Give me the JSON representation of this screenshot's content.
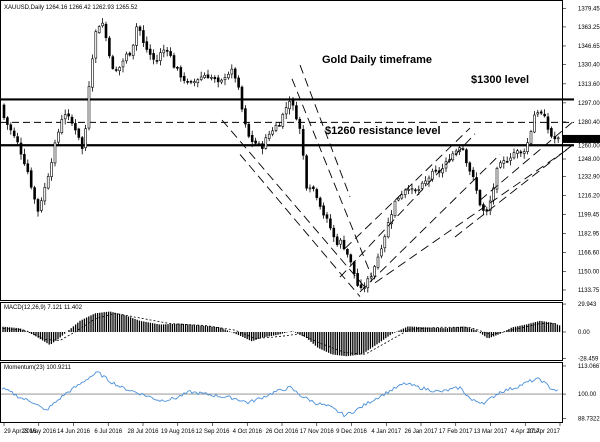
{
  "chart_data": {
    "type": "candlestick",
    "title": "XAUUSD,Daily  1264.16 1266.42 1262.93 1265.52",
    "annotations": {
      "timeframe": "Gold Daily timeframe",
      "level_1300": "$1300 level",
      "level_1260": "$1260 resistance level"
    },
    "y_ticks": [
      "1379.45",
      "1363.25",
      "1346.65",
      "1330.40",
      "1313.60",
      "1297.00",
      "1280.40",
      "1265.52",
      "1260.00",
      "1248.00",
      "1232.90",
      "1216.20",
      "1199.45",
      "1182.95",
      "1166.60",
      "1150.00",
      "1133.75"
    ],
    "y_range": [
      1125,
      1385
    ],
    "x_ticks": [
      "29 Apr 2016",
      "23 May 2016",
      "14 Jun 2016",
      "6 Jul 2016",
      "28 Jul 2016",
      "19 Aug 2016",
      "12 Sep 2016",
      "4 Oct 2016",
      "26 Oct 2016",
      "17 Nov 2016",
      "9 Dec 2016",
      "4 Jan 2017",
      "26 Jan 2017",
      "17 Feb 2017",
      "13 Mar 2017",
      "4 Apr 2017",
      "27 Apr 2017"
    ],
    "horizontal_levels": [
      {
        "name": "1300 level",
        "value": 1300,
        "style": "solid-thick"
      },
      {
        "name": "1280 level",
        "value": 1280,
        "style": "dashed"
      },
      {
        "name": "1260 level",
        "value": 1260,
        "style": "solid-thick"
      }
    ],
    "price_anchors": [
      [
        0,
        1295
      ],
      [
        10,
        1278
      ],
      [
        20,
        1262
      ],
      [
        30,
        1238
      ],
      [
        40,
        1202
      ],
      [
        48,
        1225
      ],
      [
        58,
        1262
      ],
      [
        66,
        1290
      ],
      [
        72,
        1282
      ],
      [
        80,
        1272
      ],
      [
        86,
        1252
      ],
      [
        92,
        1320
      ],
      [
        98,
        1358
      ],
      [
        104,
        1370
      ],
      [
        110,
        1348
      ],
      [
        116,
        1322
      ],
      [
        122,
        1328
      ],
      [
        128,
        1338
      ],
      [
        134,
        1342
      ],
      [
        140,
        1368
      ],
      [
        146,
        1348
      ],
      [
        152,
        1340
      ],
      [
        158,
        1332
      ],
      [
        164,
        1342
      ],
      [
        170,
        1345
      ],
      [
        176,
        1330
      ],
      [
        184,
        1320
      ],
      [
        192,
        1312
      ],
      [
        200,
        1318
      ],
      [
        208,
        1322
      ],
      [
        216,
        1318
      ],
      [
        222,
        1312
      ],
      [
        228,
        1322
      ],
      [
        236,
        1325
      ],
      [
        242,
        1305
      ],
      [
        246,
        1282
      ],
      [
        252,
        1265
      ],
      [
        258,
        1262
      ],
      [
        264,
        1258
      ],
      [
        270,
        1268
      ],
      [
        276,
        1275
      ],
      [
        282,
        1280
      ],
      [
        288,
        1292
      ],
      [
        292,
        1300
      ],
      [
        298,
        1288
      ],
      [
        304,
        1268
      ],
      [
        308,
        1225
      ],
      [
        314,
        1225
      ],
      [
        320,
        1215
      ],
      [
        326,
        1200
      ],
      [
        332,
        1190
      ],
      [
        338,
        1175
      ],
      [
        344,
        1176
      ],
      [
        350,
        1165
      ],
      [
        356,
        1150
      ],
      [
        362,
        1132
      ],
      [
        368,
        1138
      ],
      [
        374,
        1148
      ],
      [
        380,
        1162
      ],
      [
        386,
        1178
      ],
      [
        392,
        1196
      ],
      [
        398,
        1212
      ],
      [
        404,
        1218
      ],
      [
        410,
        1225
      ],
      [
        416,
        1218
      ],
      [
        422,
        1222
      ],
      [
        428,
        1228
      ],
      [
        434,
        1235
      ],
      [
        440,
        1236
      ],
      [
        446,
        1240
      ],
      [
        452,
        1250
      ],
      [
        458,
        1255
      ],
      [
        464,
        1262
      ],
      [
        470,
        1243
      ],
      [
        476,
        1230
      ],
      [
        482,
        1210
      ],
      [
        488,
        1198
      ],
      [
        494,
        1215
      ],
      [
        500,
        1240
      ],
      [
        506,
        1245
      ],
      [
        512,
        1250
      ],
      [
        518,
        1255
      ],
      [
        524,
        1252
      ],
      [
        530,
        1262
      ],
      [
        534,
        1275
      ],
      [
        538,
        1292
      ],
      [
        542,
        1288
      ],
      [
        546,
        1286
      ],
      [
        550,
        1275
      ],
      [
        555,
        1266
      ],
      [
        560,
        1265
      ]
    ],
    "macd": {
      "label": "MACD(12,26,9) 7.121 11.402",
      "y_ticks": [
        "29.943",
        "0.00",
        "-28.459"
      ],
      "y_range": [
        -30,
        30
      ],
      "anchors": [
        [
          0,
          6
        ],
        [
          20,
          4
        ],
        [
          35,
          -4
        ],
        [
          50,
          -14
        ],
        [
          60,
          -6
        ],
        [
          70,
          3
        ],
        [
          80,
          12
        ],
        [
          95,
          20
        ],
        [
          110,
          22
        ],
        [
          125,
          18
        ],
        [
          140,
          12
        ],
        [
          160,
          8
        ],
        [
          180,
          9
        ],
        [
          200,
          7
        ],
        [
          220,
          5
        ],
        [
          240,
          -4
        ],
        [
          252,
          -10
        ],
        [
          262,
          -6
        ],
        [
          278,
          -3
        ],
        [
          292,
          1
        ],
        [
          306,
          -6
        ],
        [
          318,
          -17
        ],
        [
          332,
          -24
        ],
        [
          346,
          -26
        ],
        [
          362,
          -24
        ],
        [
          376,
          -14
        ],
        [
          392,
          -2
        ],
        [
          408,
          6
        ],
        [
          426,
          5
        ],
        [
          446,
          4
        ],
        [
          464,
          6
        ],
        [
          476,
          2
        ],
        [
          488,
          -7
        ],
        [
          500,
          -2
        ],
        [
          512,
          5
        ],
        [
          526,
          8
        ],
        [
          540,
          12
        ],
        [
          552,
          10
        ],
        [
          560,
          7
        ]
      ],
      "signal_anchors": [
        [
          0,
          4
        ],
        [
          25,
          2
        ],
        [
          45,
          -8
        ],
        [
          60,
          -9
        ],
        [
          75,
          0
        ],
        [
          95,
          14
        ],
        [
          115,
          20
        ],
        [
          140,
          15
        ],
        [
          170,
          9
        ],
        [
          205,
          7
        ],
        [
          235,
          2
        ],
        [
          255,
          -7
        ],
        [
          278,
          -5
        ],
        [
          300,
          -2
        ],
        [
          320,
          -12
        ],
        [
          345,
          -22
        ],
        [
          365,
          -24
        ],
        [
          385,
          -12
        ],
        [
          410,
          3
        ],
        [
          440,
          5
        ],
        [
          470,
          5
        ],
        [
          492,
          -3
        ],
        [
          515,
          3
        ],
        [
          540,
          9
        ],
        [
          560,
          9
        ]
      ]
    },
    "momentum": {
      "label": "Momentum(23) 100.9211",
      "y_ticks": [
        "113.0667",
        "100.00",
        "88.7322"
      ],
      "y_range": [
        87,
        114
      ],
      "baseline": 100,
      "anchors": [
        [
          0,
          103
        ],
        [
          10,
          101
        ],
        [
          22,
          98
        ],
        [
          35,
          96
        ],
        [
          45,
          92
        ],
        [
          55,
          96
        ],
        [
          65,
          100
        ],
        [
          78,
          104
        ],
        [
          90,
          108
        ],
        [
          98,
          110
        ],
        [
          110,
          106
        ],
        [
          122,
          103
        ],
        [
          135,
          101
        ],
        [
          148,
          99
        ],
        [
          160,
          97
        ],
        [
          175,
          98
        ],
        [
          190,
          101
        ],
        [
          205,
          100
        ],
        [
          220,
          99
        ],
        [
          235,
          98
        ],
        [
          248,
          96
        ],
        [
          260,
          98
        ],
        [
          275,
          101
        ],
        [
          290,
          103
        ],
        [
          302,
          99
        ],
        [
          315,
          96
        ],
        [
          330,
          94
        ],
        [
          345,
          90
        ],
        [
          358,
          93
        ],
        [
          372,
          97
        ],
        [
          388,
          101
        ],
        [
          405,
          105
        ],
        [
          420,
          103
        ],
        [
          440,
          101
        ],
        [
          460,
          103
        ],
        [
          472,
          97
        ],
        [
          485,
          96
        ],
        [
          500,
          101
        ],
        [
          515,
          103
        ],
        [
          530,
          106
        ],
        [
          540,
          107
        ],
        [
          550,
          103
        ],
        [
          560,
          101
        ]
      ]
    }
  }
}
